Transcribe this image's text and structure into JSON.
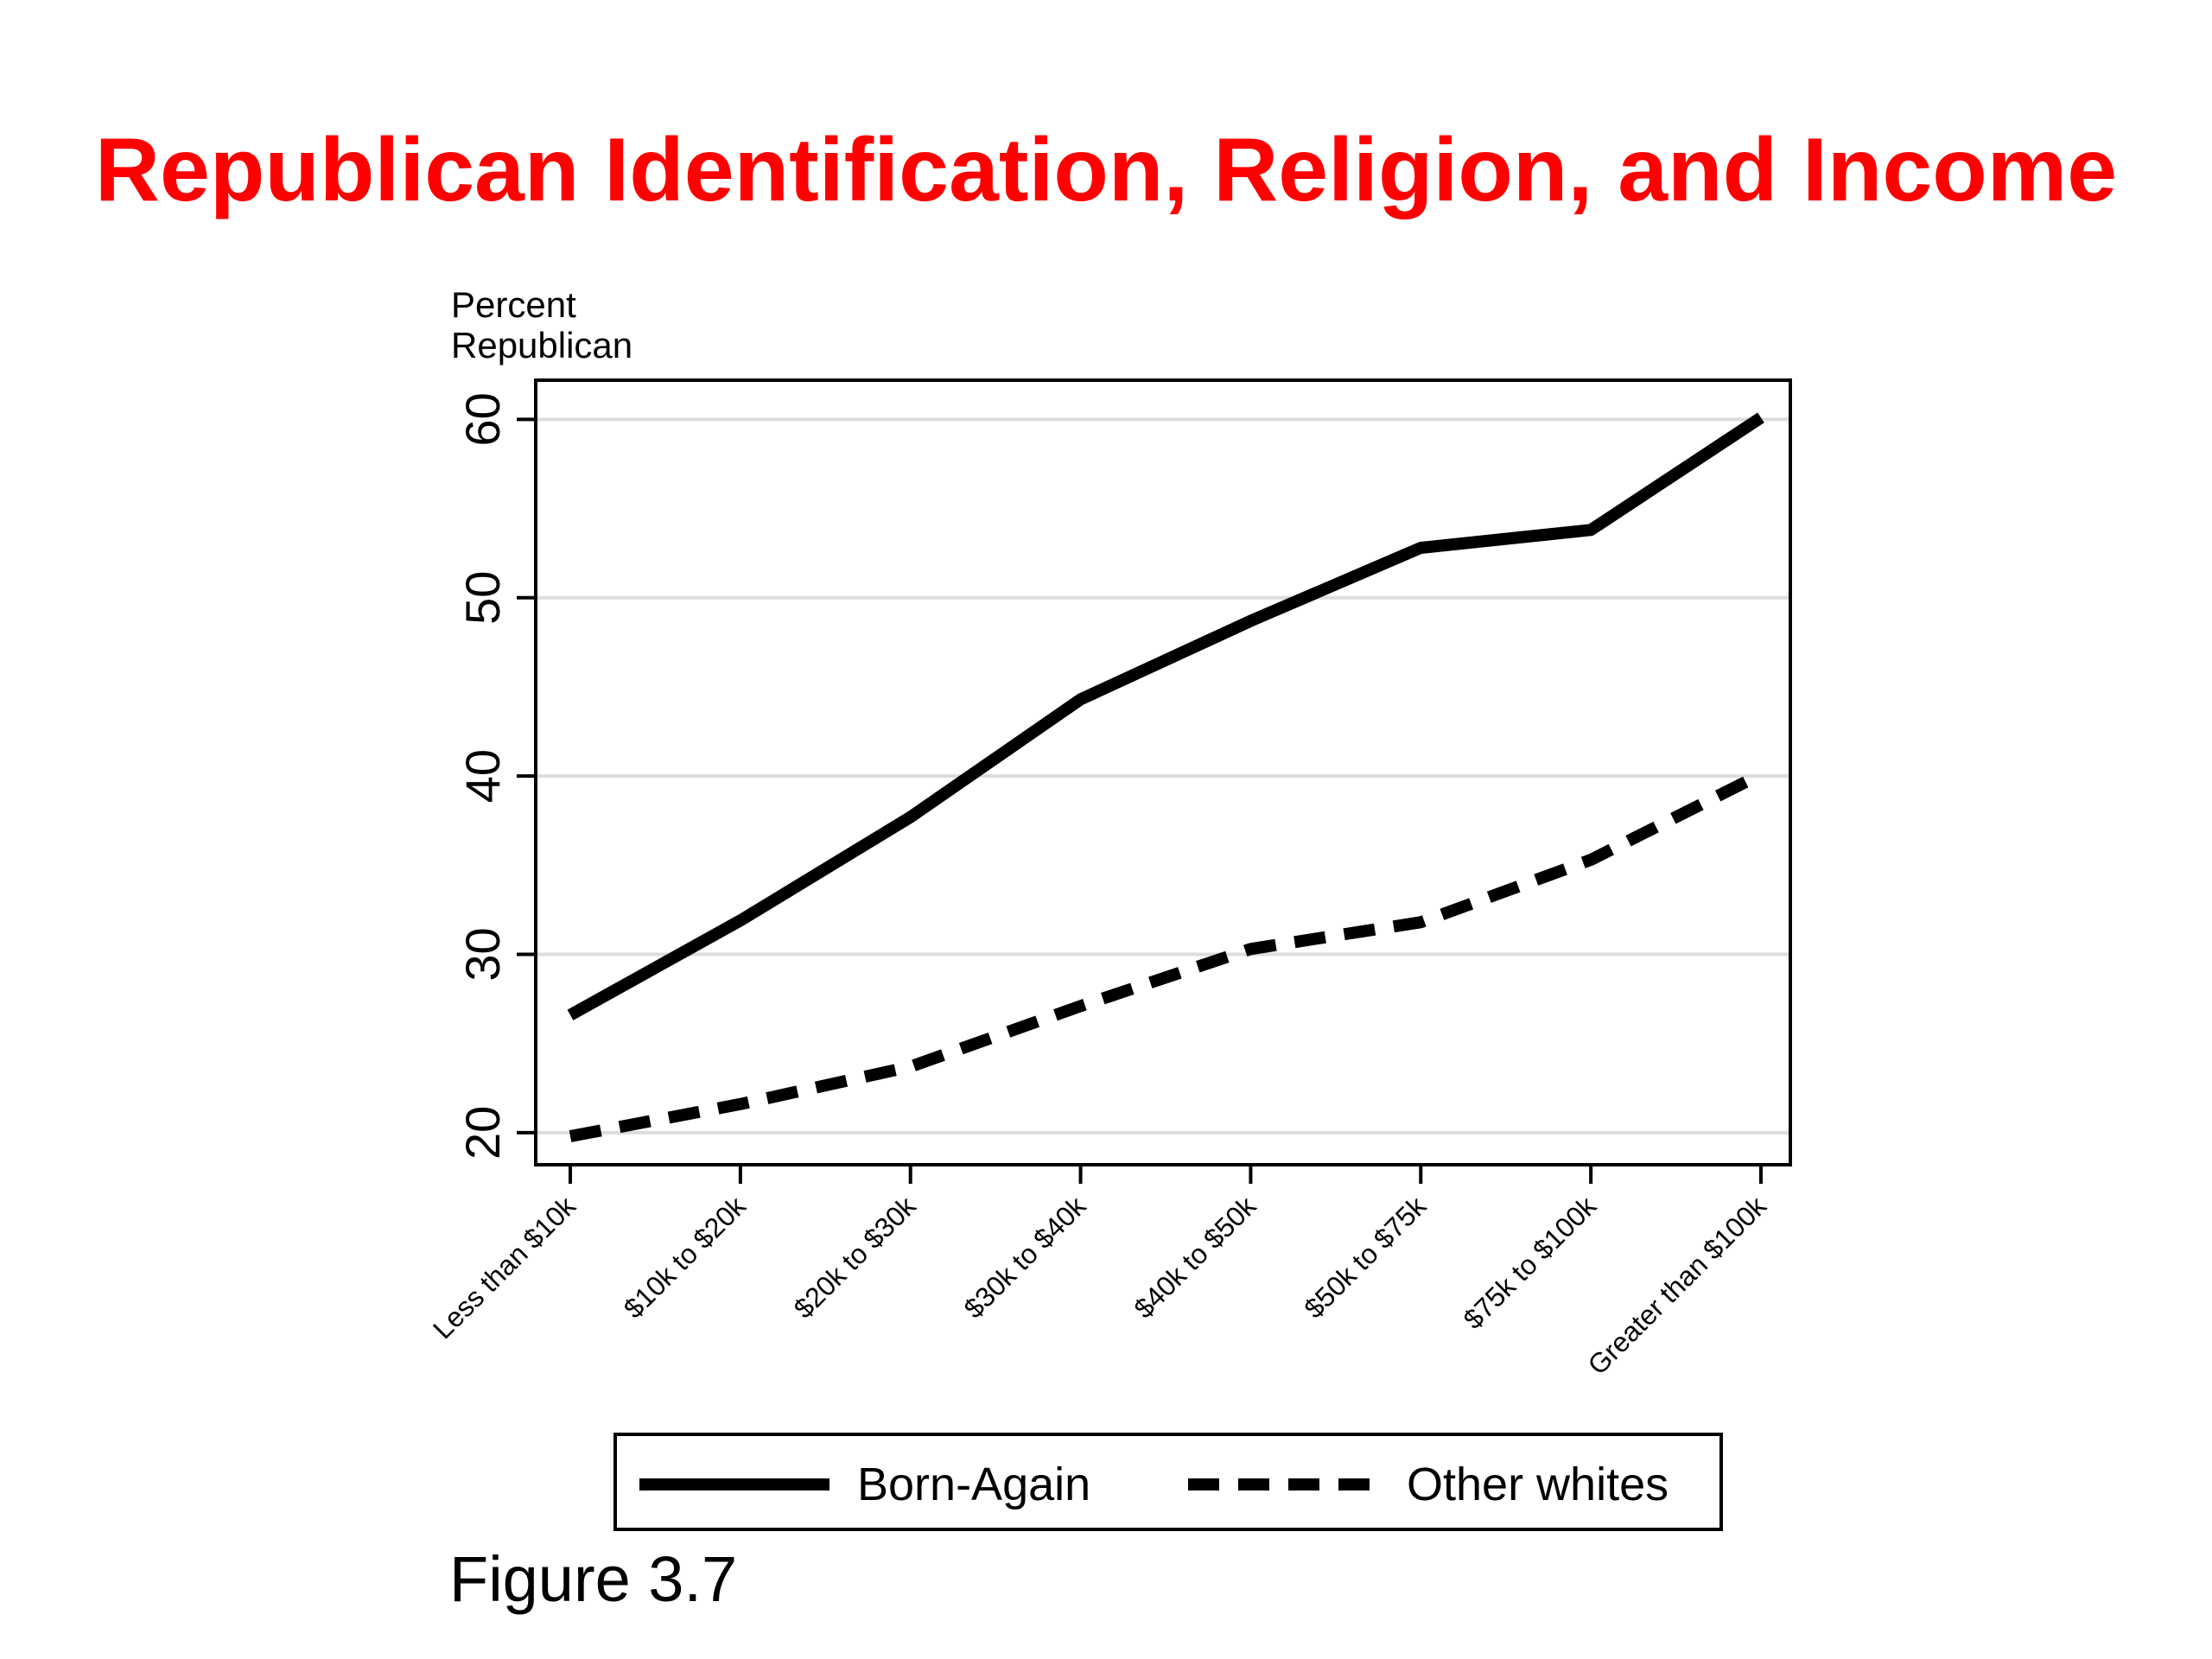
{
  "slide": {
    "title": "Republican Identification, Religion, and Income",
    "caption": "Figure 3.7"
  },
  "chart_data": {
    "type": "line",
    "title": "",
    "ylabel_lines": [
      "Percent",
      "Republican"
    ],
    "xlabel": "",
    "categories": [
      "Less than $10k",
      "$10k to $20k",
      "$20k to $30k",
      "$30k to $40k",
      "$40k to $50k",
      "$50k to $75k",
      "$75k to $100k",
      "Greater than $100k"
    ],
    "yticks": [
      20,
      30,
      40,
      50,
      60
    ],
    "ylim": [
      18.2,
      62.2
    ],
    "grid": true,
    "legend_position": "bottom",
    "series": [
      {
        "name": "Born-Again",
        "style": "solid",
        "color": "#000000",
        "values": [
          26.6,
          31.9,
          37.7,
          44.3,
          48.7,
          52.8,
          53.8,
          60.1
        ]
      },
      {
        "name": "Other whites",
        "style": "dashed",
        "color": "#000000",
        "values": [
          19.8,
          21.6,
          23.7,
          27.1,
          30.3,
          31.8,
          35.3,
          40.1
        ]
      }
    ]
  }
}
